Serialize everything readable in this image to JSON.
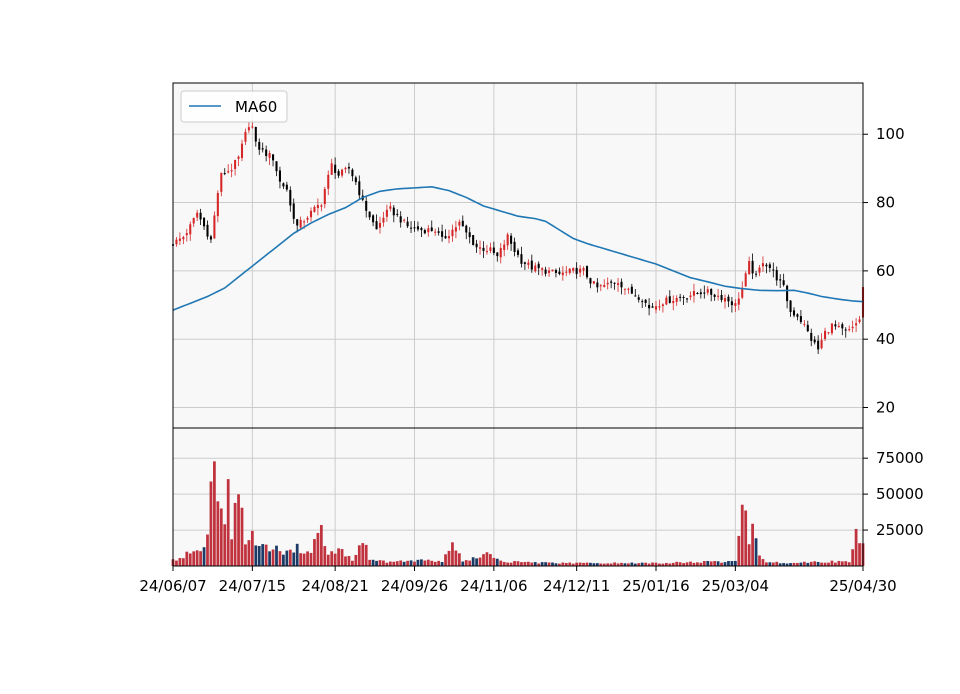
{
  "chart_data": [
    {
      "type": "candlestick",
      "legend": {
        "placement": "top-left",
        "entries": [
          "MA60"
        ]
      },
      "ylim": [
        14,
        115
      ],
      "yticks": [
        20,
        40,
        60,
        80,
        100
      ],
      "grid": true,
      "colors": {
        "up": "#d62728",
        "down": "#000000",
        "ma": "#1f77b4",
        "panel_bg": "#f8f8f8",
        "grid": "#cccccc"
      },
      "ma_label": "MA60",
      "ma60": [
        [
          0,
          48.5
        ],
        [
          5,
          50.5
        ],
        [
          10,
          52.5
        ],
        [
          15,
          55.0
        ],
        [
          20,
          59.0
        ],
        [
          25,
          63.0
        ],
        [
          30,
          67.0
        ],
        [
          35,
          71.0
        ],
        [
          40,
          74.0
        ],
        [
          45,
          76.5
        ],
        [
          50,
          78.5
        ],
        [
          55,
          81.5
        ],
        [
          60,
          83.3
        ],
        [
          65,
          84.0
        ],
        [
          70,
          84.3
        ],
        [
          75,
          84.6
        ],
        [
          80,
          83.5
        ],
        [
          85,
          81.5
        ],
        [
          90,
          79.0
        ],
        [
          95,
          77.5
        ],
        [
          100,
          76.0
        ],
        [
          105,
          75.3
        ],
        [
          108,
          74.5
        ],
        [
          112,
          72.0
        ],
        [
          116,
          69.5
        ],
        [
          120,
          68.0
        ],
        [
          125,
          66.5
        ],
        [
          130,
          65.0
        ],
        [
          135,
          63.5
        ],
        [
          140,
          62.0
        ],
        [
          145,
          60.0
        ],
        [
          150,
          58.0
        ],
        [
          155,
          56.8
        ],
        [
          160,
          55.5
        ],
        [
          165,
          54.8
        ],
        [
          170,
          54.3
        ],
        [
          175,
          54.2
        ],
        [
          180,
          54.3
        ],
        [
          184,
          53.5
        ],
        [
          188,
          52.5
        ],
        [
          193,
          51.7
        ],
        [
          197,
          51.2
        ],
        [
          200,
          51.0
        ]
      ],
      "close_anchors": [
        [
          0,
          68
        ],
        [
          3,
          70
        ],
        [
          5,
          73
        ],
        [
          7,
          77
        ],
        [
          9,
          73
        ],
        [
          11,
          69
        ],
        [
          12,
          76
        ],
        [
          13,
          83
        ],
        [
          14,
          88
        ],
        [
          17,
          90
        ],
        [
          19,
          93
        ],
        [
          21,
          100
        ],
        [
          22,
          103
        ],
        [
          23,
          102
        ],
        [
          24,
          97
        ],
        [
          26,
          95
        ],
        [
          29,
          93
        ],
        [
          31,
          86
        ],
        [
          33,
          84
        ],
        [
          34,
          79
        ],
        [
          36,
          73
        ],
        [
          38,
          75
        ],
        [
          41,
          78
        ],
        [
          43,
          80
        ],
        [
          44,
          84
        ],
        [
          46,
          91
        ],
        [
          48,
          88
        ],
        [
          51,
          90
        ],
        [
          53,
          86
        ],
        [
          55,
          80
        ],
        [
          57,
          76
        ],
        [
          59,
          72
        ],
        [
          61,
          76
        ],
        [
          63,
          78
        ],
        [
          66,
          75
        ],
        [
          68,
          73
        ],
        [
          72,
          72
        ],
        [
          76,
          72
        ],
        [
          78,
          69
        ],
        [
          81,
          72
        ],
        [
          83,
          74
        ],
        [
          85,
          71
        ],
        [
          88,
          67
        ],
        [
          92,
          66
        ],
        [
          94,
          64
        ],
        [
          97,
          70
        ],
        [
          99,
          66
        ],
        [
          101,
          63
        ],
        [
          104,
          61
        ],
        [
          108,
          60
        ],
        [
          112,
          59
        ],
        [
          116,
          60
        ],
        [
          119,
          60
        ],
        [
          121,
          57
        ],
        [
          123,
          55
        ],
        [
          126,
          56
        ],
        [
          129,
          57
        ],
        [
          132,
          54
        ],
        [
          136,
          52
        ],
        [
          138,
          49
        ],
        [
          142,
          51
        ],
        [
          146,
          52
        ],
        [
          150,
          53
        ],
        [
          154,
          54
        ],
        [
          157,
          53
        ],
        [
          160,
          52
        ],
        [
          163,
          50
        ],
        [
          165,
          55
        ],
        [
          167,
          62
        ],
        [
          169,
          58
        ],
        [
          171,
          63
        ],
        [
          173,
          61
        ],
        [
          175,
          58
        ],
        [
          177,
          55
        ],
        [
          179,
          48
        ],
        [
          181,
          47
        ],
        [
          183,
          44
        ],
        [
          185,
          40
        ],
        [
          187,
          37
        ],
        [
          189,
          42
        ],
        [
          191,
          44
        ],
        [
          193,
          43
        ],
        [
          195,
          42
        ],
        [
          197,
          43
        ],
        [
          199,
          46
        ],
        [
          200,
          55
        ]
      ],
      "volume": {
        "ylim": [
          0,
          96000
        ],
        "yticks": [
          25000,
          50000,
          75000
        ],
        "anchors": [
          [
            0,
            4000
          ],
          [
            3,
            7000
          ],
          [
            6,
            10000
          ],
          [
            9,
            12000
          ],
          [
            10,
            20000
          ],
          [
            11,
            64000
          ],
          [
            12,
            68000
          ],
          [
            13,
            40000
          ],
          [
            14,
            33000
          ],
          [
            15,
            25000
          ],
          [
            16,
            63000
          ],
          [
            17,
            22000
          ],
          [
            18,
            50000
          ],
          [
            19,
            53000
          ],
          [
            20,
            45000
          ],
          [
            21,
            19000
          ],
          [
            22,
            19000
          ],
          [
            23,
            26000
          ],
          [
            24,
            18000
          ],
          [
            26,
            14000
          ],
          [
            29,
            12000
          ],
          [
            32,
            10000
          ],
          [
            36,
            13000
          ],
          [
            40,
            8000
          ],
          [
            42,
            29000
          ],
          [
            43,
            28000
          ],
          [
            45,
            7000
          ],
          [
            48,
            13000
          ],
          [
            52,
            4000
          ],
          [
            55,
            20000
          ],
          [
            57,
            5000
          ],
          [
            62,
            3000
          ],
          [
            72,
            4000
          ],
          [
            78,
            3000
          ],
          [
            81,
            17000
          ],
          [
            84,
            3000
          ],
          [
            91,
            8000
          ],
          [
            96,
            3000
          ],
          [
            110,
            2000
          ],
          [
            140,
            2000
          ],
          [
            157,
            3000
          ],
          [
            163,
            3000
          ],
          [
            165,
            38000
          ],
          [
            166,
            46000
          ],
          [
            167,
            15000
          ],
          [
            168,
            31000
          ],
          [
            169,
            16000
          ],
          [
            170,
            6000
          ],
          [
            172,
            3000
          ],
          [
            180,
            2000
          ],
          [
            185,
            3000
          ],
          [
            190,
            3000
          ],
          [
            196,
            3000
          ],
          [
            198,
            21000
          ],
          [
            200,
            19000
          ]
        ]
      },
      "xaxis": {
        "n_bars": 201,
        "ticks": [
          {
            "i": 0,
            "label": "24/06/07"
          },
          {
            "i": 23,
            "label": "24/07/15"
          },
          {
            "i": 47,
            "label": "24/08/21"
          },
          {
            "i": 70,
            "label": "24/09/26"
          },
          {
            "i": 93,
            "label": "24/11/06"
          },
          {
            "i": 117,
            "label": "24/12/11"
          },
          {
            "i": 140,
            "label": "25/01/16"
          },
          {
            "i": 163,
            "label": "25/03/04"
          },
          {
            "i": 200,
            "label": "25/04/30"
          }
        ]
      }
    }
  ]
}
